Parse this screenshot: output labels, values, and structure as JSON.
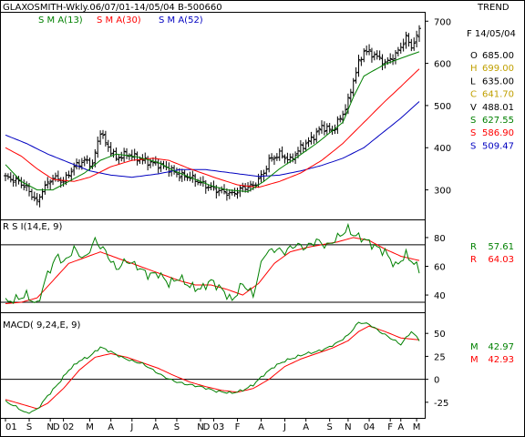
{
  "header": {
    "title": "GLAXOSMITH-Wkly.06/07/01-14/05/04  B-500660",
    "mode": "TREND"
  },
  "colors": {
    "sma13": "#008000",
    "sma30": "#ff0000",
    "sma52": "#0000c0",
    "price": "#000000",
    "rsi": "#008000",
    "rsi_signal": "#ff0000",
    "macd": "#008000",
    "macd_signal": "#ff0000"
  },
  "chart_data": [
    {
      "type": "line",
      "panel": "price",
      "legend": [
        {
          "label": "S M A(13)",
          "color": "#008000"
        },
        {
          "label": "S M A(30)",
          "color": "#ff0000"
        },
        {
          "label": "S M A(52)",
          "color": "#0000c0"
        }
      ],
      "ylim": [
        230,
        720
      ],
      "yticks": [
        300,
        400,
        500,
        600,
        700
      ],
      "x_labels": [
        "01",
        "S",
        "N",
        "D 02",
        "M",
        "A",
        "J",
        "A",
        "S",
        "N",
        "D 03",
        "F",
        "A",
        "J",
        "A",
        "S",
        "N",
        "04",
        "F",
        "A",
        "M"
      ],
      "x_label_weeks": [
        0,
        9,
        17,
        22,
        32,
        40,
        48,
        57,
        65,
        74,
        79,
        88,
        97,
        106,
        114,
        123,
        130,
        138,
        146,
        150,
        156
      ],
      "readout": [
        {
          "label": "F",
          "value": "14/05/04",
          "color": "#000000"
        },
        {
          "label": "O",
          "value": "685.00",
          "color": "#000000"
        },
        {
          "label": "H",
          "value": "699.00",
          "color": "#c0a000"
        },
        {
          "label": "L",
          "value": "635.00",
          "color": "#000000"
        },
        {
          "label": "C",
          "value": "641.70",
          "color": "#c0a000"
        },
        {
          "label": "V",
          "value": "488.01",
          "color": "#000000"
        },
        {
          "label": "S",
          "value": "627.55",
          "color": "#008000"
        },
        {
          "label": "S",
          "value": "586.90",
          "color": "#ff0000"
        },
        {
          "label": "S",
          "value": "509.47",
          "color": "#0000c0"
        }
      ],
      "ohlc_anchors": [
        [
          0,
          330
        ],
        [
          5,
          320
        ],
        [
          8,
          305
        ],
        [
          12,
          270
        ],
        [
          14,
          300
        ],
        [
          18,
          330
        ],
        [
          22,
          320
        ],
        [
          26,
          355
        ],
        [
          30,
          370
        ],
        [
          33,
          360
        ],
        [
          36,
          440
        ],
        [
          38,
          410
        ],
        [
          42,
          375
        ],
        [
          46,
          385
        ],
        [
          52,
          370
        ],
        [
          58,
          360
        ],
        [
          62,
          350
        ],
        [
          66,
          335
        ],
        [
          70,
          330
        ],
        [
          76,
          310
        ],
        [
          80,
          300
        ],
        [
          86,
          290
        ],
        [
          90,
          305
        ],
        [
          94,
          310
        ],
        [
          98,
          340
        ],
        [
          100,
          370
        ],
        [
          104,
          385
        ],
        [
          108,
          370
        ],
        [
          112,
          400
        ],
        [
          116,
          420
        ],
        [
          120,
          450
        ],
        [
          124,
          440
        ],
        [
          128,
          480
        ],
        [
          130,
          510
        ],
        [
          132,
          560
        ],
        [
          134,
          600
        ],
        [
          136,
          630
        ],
        [
          140,
          620
        ],
        [
          144,
          600
        ],
        [
          148,
          620
        ],
        [
          152,
          660
        ],
        [
          154,
          640
        ],
        [
          156,
          660
        ],
        [
          157,
          685
        ]
      ],
      "sma13_anchors": [
        [
          0,
          360
        ],
        [
          6,
          320
        ],
        [
          12,
          300
        ],
        [
          18,
          300
        ],
        [
          24,
          320
        ],
        [
          30,
          340
        ],
        [
          36,
          370
        ],
        [
          42,
          385
        ],
        [
          50,
          378
        ],
        [
          58,
          365
        ],
        [
          64,
          345
        ],
        [
          70,
          330
        ],
        [
          78,
          310
        ],
        [
          84,
          300
        ],
        [
          92,
          296
        ],
        [
          98,
          320
        ],
        [
          104,
          350
        ],
        [
          110,
          375
        ],
        [
          118,
          410
        ],
        [
          124,
          440
        ],
        [
          128,
          460
        ],
        [
          132,
          520
        ],
        [
          136,
          570
        ],
        [
          144,
          598
        ],
        [
          150,
          612
        ],
        [
          157,
          627.55
        ]
      ],
      "sma30_anchors": [
        [
          0,
          400
        ],
        [
          6,
          380
        ],
        [
          12,
          350
        ],
        [
          18,
          325
        ],
        [
          26,
          320
        ],
        [
          32,
          330
        ],
        [
          40,
          355
        ],
        [
          48,
          370
        ],
        [
          56,
          375
        ],
        [
          62,
          370
        ],
        [
          70,
          350
        ],
        [
          80,
          328
        ],
        [
          88,
          312
        ],
        [
          96,
          306
        ],
        [
          104,
          320
        ],
        [
          112,
          340
        ],
        [
          120,
          370
        ],
        [
          128,
          410
        ],
        [
          136,
          460
        ],
        [
          144,
          510
        ],
        [
          150,
          545
        ],
        [
          157,
          586.9
        ]
      ],
      "sma52_anchors": [
        [
          0,
          430
        ],
        [
          8,
          410
        ],
        [
          16,
          385
        ],
        [
          24,
          365
        ],
        [
          32,
          345
        ],
        [
          40,
          335
        ],
        [
          48,
          330
        ],
        [
          58,
          338
        ],
        [
          66,
          348
        ],
        [
          76,
          348
        ],
        [
          86,
          340
        ],
        [
          96,
          332
        ],
        [
          104,
          335
        ],
        [
          112,
          345
        ],
        [
          120,
          358
        ],
        [
          128,
          375
        ],
        [
          136,
          400
        ],
        [
          144,
          440
        ],
        [
          150,
          470
        ],
        [
          157,
          509.47
        ]
      ]
    },
    {
      "type": "line",
      "panel": "rsi",
      "legend": [
        {
          "label": "R S I(14,E, 9)",
          "color": "#000000"
        }
      ],
      "ylim": [
        28,
        92
      ],
      "yticks": [
        40,
        60,
        80
      ],
      "hlines": [
        35,
        75
      ],
      "readout": [
        {
          "label": "R",
          "value": "57.61",
          "color": "#008000"
        },
        {
          "label": "R",
          "value": "64.03",
          "color": "#ff0000"
        }
      ],
      "rsi_anchors": [
        [
          0,
          35
        ],
        [
          4,
          37
        ],
        [
          8,
          40
        ],
        [
          12,
          33
        ],
        [
          16,
          55
        ],
        [
          20,
          68
        ],
        [
          22,
          62
        ],
        [
          26,
          72
        ],
        [
          30,
          65
        ],
        [
          34,
          78
        ],
        [
          38,
          70
        ],
        [
          42,
          58
        ],
        [
          46,
          64
        ],
        [
          50,
          60
        ],
        [
          54,
          54
        ],
        [
          58,
          55
        ],
        [
          62,
          48
        ],
        [
          66,
          52
        ],
        [
          70,
          46
        ],
        [
          74,
          44
        ],
        [
          78,
          50
        ],
        [
          82,
          44
        ],
        [
          86,
          36
        ],
        [
          90,
          48
        ],
        [
          94,
          40
        ],
        [
          98,
          68
        ],
        [
          102,
          72
        ],
        [
          106,
          70
        ],
        [
          110,
          75
        ],
        [
          114,
          73
        ],
        [
          118,
          78
        ],
        [
          122,
          74
        ],
        [
          126,
          80
        ],
        [
          130,
          86
        ],
        [
          132,
          82
        ],
        [
          136,
          79
        ],
        [
          140,
          74
        ],
        [
          144,
          70
        ],
        [
          148,
          60
        ],
        [
          152,
          68
        ],
        [
          155,
          62
        ],
        [
          157,
          57.61
        ]
      ],
      "rsi_signal_anchors": [
        [
          0,
          34
        ],
        [
          6,
          35
        ],
        [
          12,
          38
        ],
        [
          18,
          50
        ],
        [
          24,
          62
        ],
        [
          30,
          66
        ],
        [
          36,
          70
        ],
        [
          42,
          66
        ],
        [
          48,
          62
        ],
        [
          54,
          58
        ],
        [
          60,
          54
        ],
        [
          66,
          50
        ],
        [
          72,
          47
        ],
        [
          78,
          47
        ],
        [
          84,
          44
        ],
        [
          90,
          40
        ],
        [
          96,
          48
        ],
        [
          102,
          62
        ],
        [
          108,
          70
        ],
        [
          114,
          73
        ],
        [
          120,
          75
        ],
        [
          126,
          77
        ],
        [
          132,
          80
        ],
        [
          138,
          78
        ],
        [
          144,
          72
        ],
        [
          150,
          67
        ],
        [
          157,
          64.03
        ]
      ]
    },
    {
      "type": "line",
      "panel": "macd",
      "legend": [
        {
          "label": "MACD( 9,24,E, 9)",
          "color": "#000000"
        }
      ],
      "ylim": [
        -42,
        72
      ],
      "yticks": [
        -25,
        0,
        25,
        50
      ],
      "readout": [
        {
          "label": "M",
          "value": "42.97",
          "color": "#008000"
        },
        {
          "label": "M",
          "value": "42.93",
          "color": "#ff0000"
        }
      ],
      "macd_anchors": [
        [
          0,
          -24
        ],
        [
          4,
          -30
        ],
        [
          8,
          -37
        ],
        [
          12,
          -33
        ],
        [
          16,
          -18
        ],
        [
          20,
          -5
        ],
        [
          24,
          10
        ],
        [
          28,
          20
        ],
        [
          32,
          25
        ],
        [
          36,
          35
        ],
        [
          40,
          30
        ],
        [
          44,
          24
        ],
        [
          48,
          20
        ],
        [
          52,
          17
        ],
        [
          56,
          10
        ],
        [
          60,
          3
        ],
        [
          64,
          -2
        ],
        [
          68,
          -5
        ],
        [
          74,
          -8
        ],
        [
          80,
          -13
        ],
        [
          86,
          -15
        ],
        [
          90,
          -12
        ],
        [
          94,
          -6
        ],
        [
          98,
          5
        ],
        [
          102,
          14
        ],
        [
          106,
          20
        ],
        [
          110,
          24
        ],
        [
          114,
          28
        ],
        [
          118,
          30
        ],
        [
          122,
          34
        ],
        [
          126,
          40
        ],
        [
          130,
          48
        ],
        [
          134,
          62
        ],
        [
          138,
          60
        ],
        [
          142,
          52
        ],
        [
          146,
          45
        ],
        [
          150,
          38
        ],
        [
          154,
          52
        ],
        [
          157,
          42.97
        ]
      ],
      "macd_signal_anchors": [
        [
          0,
          -22
        ],
        [
          6,
          -27
        ],
        [
          12,
          -32
        ],
        [
          16,
          -26
        ],
        [
          22,
          -10
        ],
        [
          28,
          10
        ],
        [
          34,
          24
        ],
        [
          40,
          28
        ],
        [
          46,
          24
        ],
        [
          52,
          18
        ],
        [
          58,
          12
        ],
        [
          64,
          4
        ],
        [
          70,
          -3
        ],
        [
          76,
          -8
        ],
        [
          82,
          -12
        ],
        [
          88,
          -14
        ],
        [
          94,
          -10
        ],
        [
          100,
          0
        ],
        [
          106,
          14
        ],
        [
          112,
          22
        ],
        [
          118,
          28
        ],
        [
          124,
          34
        ],
        [
          130,
          42
        ],
        [
          134,
          52
        ],
        [
          138,
          58
        ],
        [
          144,
          52
        ],
        [
          150,
          45
        ],
        [
          157,
          42.93
        ]
      ]
    }
  ]
}
